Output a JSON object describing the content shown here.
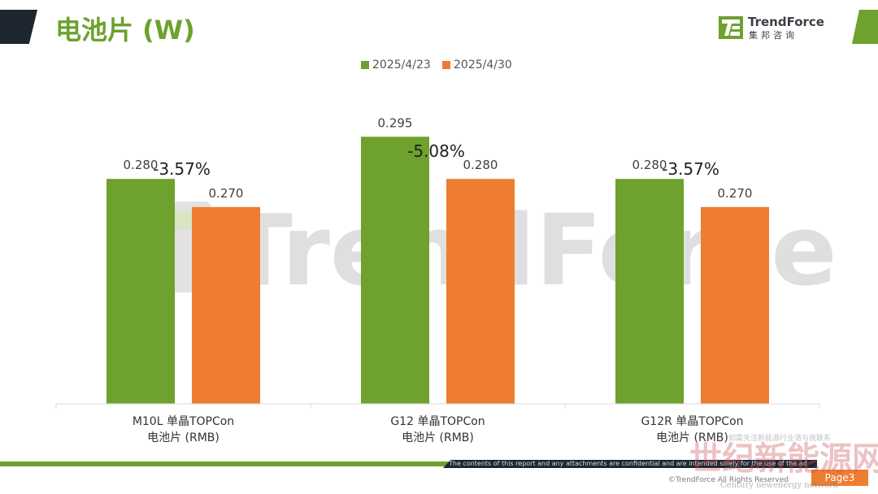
{
  "header": {
    "title": "电池片 (W)",
    "logo_name": "TrendForce",
    "logo_sub": "集邦咨询"
  },
  "watermark": "TrendForce",
  "chart_data": {
    "type": "bar",
    "categories": [
      [
        "M10L 单晶TOPCon",
        "电池片 (RMB)"
      ],
      [
        "G12 单晶TOPCon",
        "电池片 (RMB)"
      ],
      [
        "G12R 单晶TOPCon",
        "电池片 (RMB)"
      ]
    ],
    "series": [
      {
        "name": "2025/4/23",
        "values": [
          0.28,
          0.295,
          0.28
        ],
        "labels": [
          "0.280",
          "0.295",
          "0.280"
        ],
        "color": "#6ea12e"
      },
      {
        "name": "2025/4/30",
        "values": [
          0.27,
          0.28,
          0.27
        ],
        "labels": [
          "0.270",
          "0.280",
          "0.270"
        ],
        "color": "#ef7d31"
      }
    ],
    "annotations": [
      "-3.57%",
      "-5.08%",
      "-3.57%"
    ],
    "ylim": [
      0.2,
      0.3
    ],
    "legend": "top-center",
    "grid": false
  },
  "footer": {
    "disclaimer": "The contents of this report and any attachments are confidential and are intended solely for the use of the addressee.",
    "copyright": "©TrendForce All Rights Reserved",
    "page": "Page3"
  },
  "overlay_watermark": {
    "cn": "世纪新能源网",
    "sub": "如需关注新能源行业请与我联系",
    "en": "Century newenergy network"
  }
}
